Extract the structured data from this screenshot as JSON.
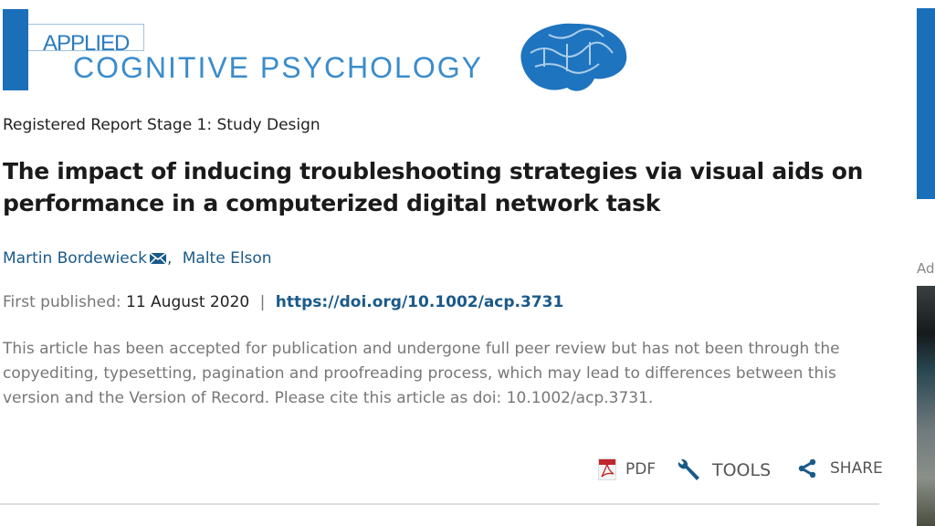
{
  "journal": {
    "logo_line1": "APPLIED",
    "logo_line2": "COGNITIVE PSYCHOLOGY"
  },
  "article": {
    "type": "Registered Report Stage 1: Study Design",
    "title": "The impact of inducing troubleshooting strategies via visual aids on performance in a computerized digital network task",
    "authors": [
      "Martin Bordewieck",
      "Malte Elson"
    ],
    "author_separator": ",",
    "published_label": "First published:",
    "published_date": "11 August 2020",
    "pipe": "|",
    "doi": "https://doi.org/10.1002/acp.3731",
    "note": "This article has been accepted for publication and undergone full peer review but has not been through the copyediting, typesetting, pagination and proofreading process, which may lead to differences between this version and the Version of Record. Please cite this article as doi: 10.1002/acp.3731."
  },
  "toolbar": {
    "pdf": "PDF",
    "tools": "TOOLS",
    "share": "SHARE"
  },
  "sidebar": {
    "ad_label": "Ad"
  },
  "colors": {
    "brand": "#1b6fb8",
    "link": "#1a5a8a"
  }
}
